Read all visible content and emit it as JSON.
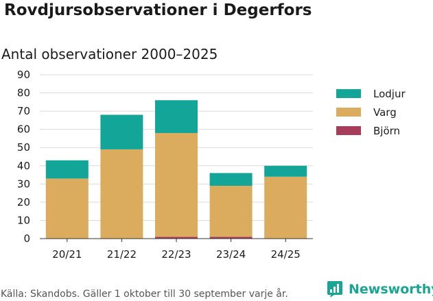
{
  "title": "Rovdjursobservationer i Degerfors",
  "subtitle": "Antal observationer 2000–2025",
  "footer": "Källa: Skandobs. Gäller 1 oktober till 30 september varje år.",
  "brand": "Newsworthy",
  "chart_data": {
    "type": "bar",
    "stacked": true,
    "title": "Rovdjursobservationer i Degerfors",
    "subtitle": "Antal observationer 2000–2025",
    "categories": [
      "20/21",
      "21/22",
      "22/23",
      "23/24",
      "24/25"
    ],
    "series": [
      {
        "name": "Björn",
        "color": "#a63d5b",
        "values": [
          0,
          0,
          1,
          1,
          0
        ]
      },
      {
        "name": "Varg",
        "color": "#dbab5e",
        "values": [
          33,
          49,
          57,
          28,
          34
        ]
      },
      {
        "name": "Lodjur",
        "color": "#14a599",
        "values": [
          10,
          19,
          18,
          7,
          6
        ]
      }
    ],
    "legend_order": [
      "Lodjur",
      "Varg",
      "Björn"
    ],
    "yticks": [
      0,
      10,
      20,
      30,
      40,
      50,
      60,
      70,
      80,
      90
    ],
    "ylim": [
      0,
      90
    ],
    "xlabel": "",
    "ylabel": "",
    "grid": true,
    "legend_position": "right"
  }
}
